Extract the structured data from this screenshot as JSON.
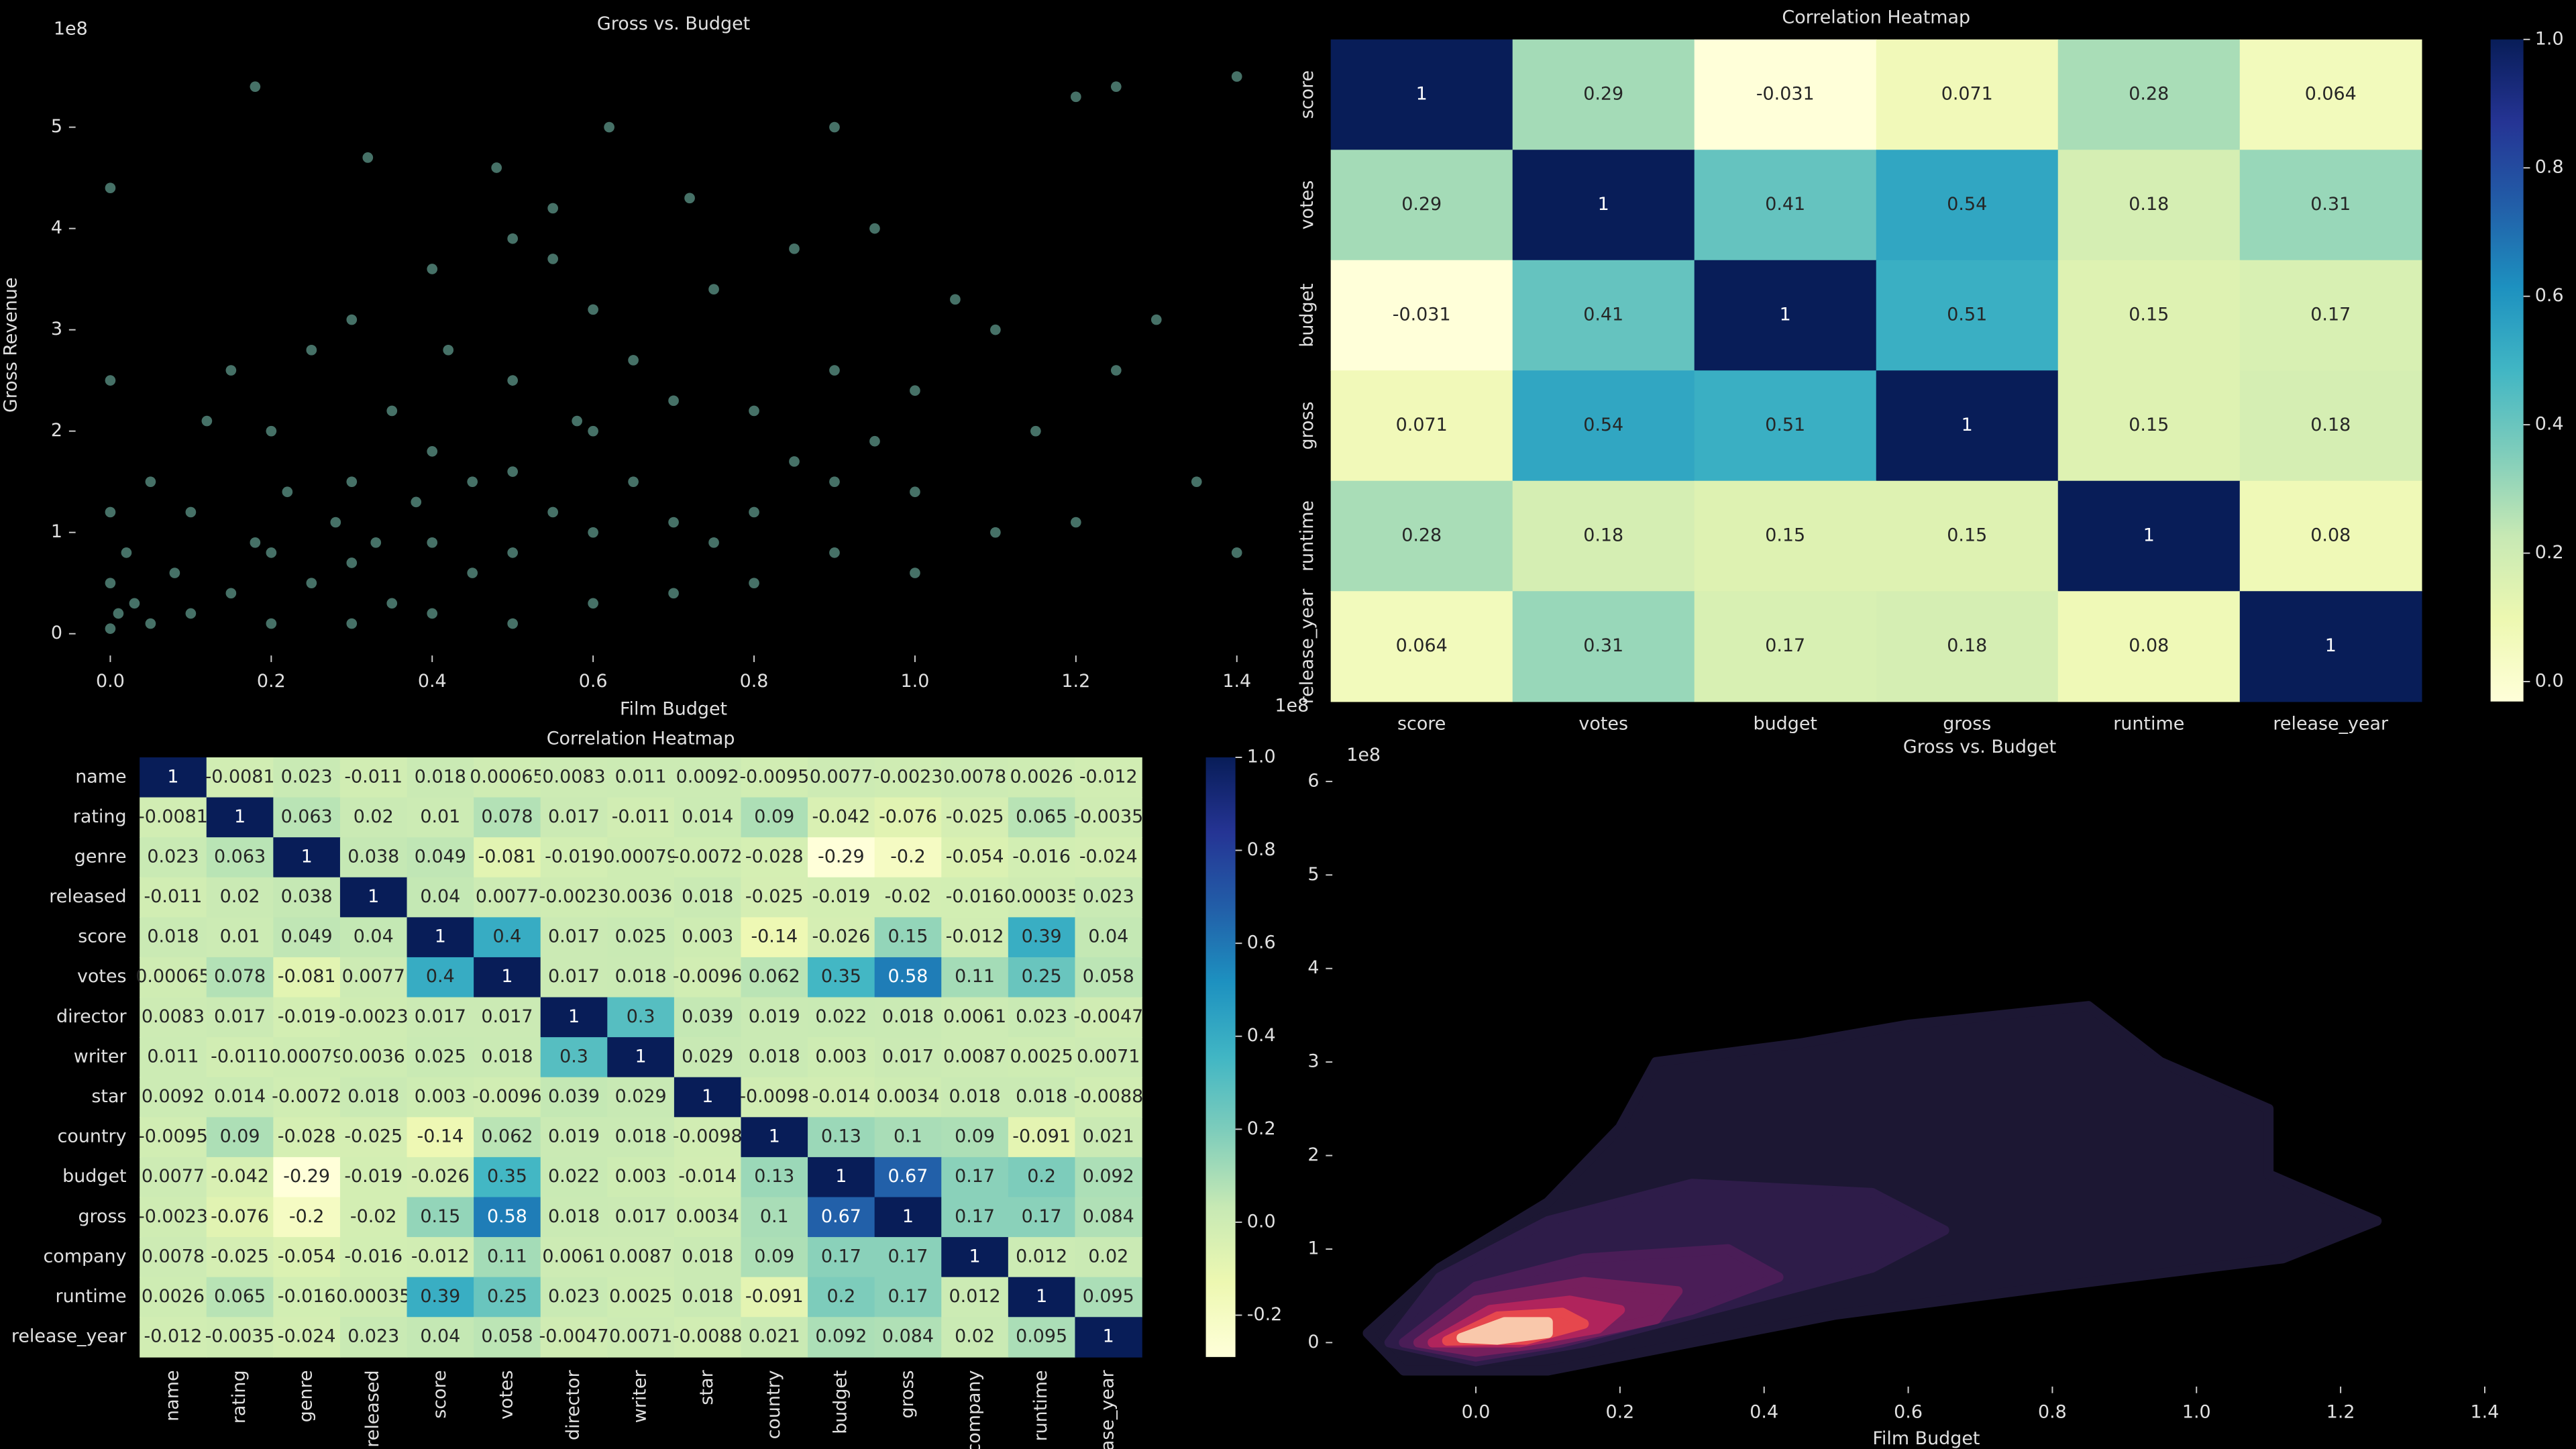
{
  "chart_data": [
    {
      "type": "scatter",
      "title": "Gross vs. Budget",
      "xlabel": "Film Budget",
      "ylabel": "Gross Revenue",
      "x_offset": "1e8",
      "y_offset": "1e8",
      "xlim": [
        -0.035,
        1.435
      ],
      "ylim": [
        -0.15,
        5.85
      ],
      "xticks": [
        {
          "value": 0,
          "label": "0.0"
        },
        0.2,
        0.4,
        0.6,
        0.8,
        {
          "value": 1,
          "label": "1.0"
        },
        1.2,
        1.4
      ],
      "yticks": [
        0,
        1,
        2,
        3,
        4,
        5
      ],
      "color": "#7fcdbb",
      "alpha": 0.55,
      "x": [
        0,
        0,
        0,
        0,
        0,
        0.01,
        0.02,
        0.03,
        0.05,
        0.05,
        0.08,
        0.1,
        0.1,
        0.12,
        0.15,
        0.15,
        0.18,
        0.2,
        0.2,
        0.2,
        0.22,
        0.25,
        0.25,
        0.28,
        0.3,
        0.3,
        0.3,
        0.3,
        0.33,
        0.35,
        0.35,
        0.38,
        0.4,
        0.4,
        0.4,
        0.4,
        0.42,
        0.45,
        0.45,
        0.48,
        0.5,
        0.5,
        0.5,
        0.5,
        0.5,
        0.55,
        0.55,
        0.58,
        0.6,
        0.6,
        0.6,
        0.6,
        0.62,
        0.65,
        0.65,
        0.7,
        0.7,
        0.7,
        0.72,
        0.75,
        0.75,
        0.8,
        0.8,
        0.8,
        0.85,
        0.85,
        0.9,
        0.9,
        0.9,
        0.95,
        0.95,
        1.0,
        1.0,
        1.0,
        1.05,
        1.1,
        1.1,
        1.15,
        1.2,
        1.2,
        1.25,
        1.25,
        1.3,
        1.35,
        1.4,
        1.4,
        0.18,
        0.32,
        0.9,
        0.55
      ],
      "y": [
        0.05,
        0.5,
        1.2,
        2.5,
        4.4,
        0.2,
        0.8,
        0.3,
        1.5,
        0.1,
        0.6,
        0.2,
        1.2,
        2.1,
        0.4,
        2.6,
        0.9,
        0.1,
        0.8,
        2.0,
        1.4,
        0.5,
        2.8,
        1.1,
        0.1,
        0.7,
        1.5,
        3.1,
        0.9,
        0.3,
        2.2,
        1.3,
        0.2,
        0.9,
        1.8,
        3.6,
        2.8,
        0.6,
        1.5,
        4.6,
        0.1,
        0.8,
        1.6,
        2.5,
        3.9,
        1.2,
        4.2,
        2.1,
        0.3,
        1.0,
        2.0,
        3.2,
        5.0,
        1.5,
        2.7,
        0.4,
        1.1,
        2.3,
        4.3,
        0.9,
        3.4,
        0.5,
        1.2,
        2.2,
        1.7,
        3.8,
        0.8,
        1.5,
        2.6,
        1.9,
        4.0,
        0.6,
        1.4,
        2.4,
        3.3,
        1.0,
        3.0,
        2.0,
        1.1,
        5.3,
        2.6,
        5.4,
        3.1,
        1.5,
        0.8,
        5.5,
        5.4,
        4.7,
        5.0,
        3.7
      ]
    },
    {
      "type": "heatmap",
      "title": "Correlation Heatmap",
      "labels": [
        "score",
        "votes",
        "budget",
        "gross",
        "runtime",
        "release_year"
      ],
      "values": [
        [
          1,
          0.29,
          -0.031,
          0.071,
          0.28,
          0.064
        ],
        [
          0.29,
          1,
          0.41,
          0.54,
          0.18,
          0.31
        ],
        [
          -0.031,
          0.41,
          1,
          0.51,
          0.15,
          0.17
        ],
        [
          0.071,
          0.54,
          0.51,
          1,
          0.15,
          0.18
        ],
        [
          0.28,
          0.18,
          0.15,
          0.15,
          1,
          0.08
        ],
        [
          0.064,
          0.31,
          0.17,
          0.18,
          0.08,
          1
        ]
      ],
      "clim": [
        -0.031,
        1
      ],
      "cticks": [
        {
          "value": 0,
          "label": "0.0"
        },
        0.2,
        0.4,
        0.6,
        0.8,
        {
          "value": 1,
          "label": "1.0"
        }
      ],
      "colormap": [
        "#ffffd9",
        "#edf8b1",
        "#c7e9b4",
        "#7fcdbb",
        "#41b6c4",
        "#1d91c0",
        "#225ea8",
        "#253494",
        "#081d58"
      ]
    },
    {
      "type": "heatmap",
      "title": "Correlation Heatmap",
      "labels": [
        "name",
        "rating",
        "genre",
        "released",
        "score",
        "votes",
        "director",
        "writer",
        "star",
        "country",
        "budget",
        "gross",
        "company",
        "runtime",
        "release_year"
      ],
      "values": [
        [
          1,
          -0.0081,
          0.023,
          -0.011,
          0.018,
          0.00065,
          0.0083,
          0.011,
          0.0092,
          -0.0095,
          0.0077,
          -0.0023,
          0.0078,
          0.0026,
          -0.012
        ],
        [
          -0.0081,
          1,
          0.063,
          0.02,
          0.01,
          0.078,
          0.017,
          -0.011,
          0.014,
          0.09,
          -0.042,
          -0.076,
          -0.025,
          0.065,
          -0.0035
        ],
        [
          0.023,
          0.063,
          1,
          0.038,
          0.049,
          -0.081,
          -0.019,
          0.00079,
          -0.0072,
          -0.028,
          -0.29,
          -0.2,
          -0.054,
          -0.016,
          -0.024
        ],
        [
          -0.011,
          0.02,
          0.038,
          1,
          0.04,
          0.0077,
          -0.0023,
          0.0036,
          0.018,
          -0.025,
          -0.019,
          -0.02,
          -0.016,
          0.00035,
          0.023
        ],
        [
          0.018,
          0.01,
          0.049,
          0.04,
          1,
          0.4,
          0.017,
          0.025,
          0.003,
          -0.14,
          -0.026,
          0.15,
          -0.012,
          0.39,
          0.04
        ],
        [
          0.00065,
          0.078,
          -0.081,
          0.0077,
          0.4,
          1,
          0.017,
          0.018,
          -0.0096,
          0.062,
          0.35,
          0.58,
          0.11,
          0.25,
          0.058
        ],
        [
          0.0083,
          0.017,
          -0.019,
          -0.0023,
          0.017,
          0.017,
          1,
          0.3,
          0.039,
          0.019,
          0.022,
          0.018,
          0.0061,
          0.023,
          -0.0047
        ],
        [
          0.011,
          -0.011,
          0.00079,
          0.0036,
          0.025,
          0.018,
          0.3,
          1,
          0.029,
          0.018,
          0.003,
          0.017,
          0.0087,
          0.0025,
          0.0071
        ],
        [
          0.0092,
          0.014,
          -0.0072,
          0.018,
          0.003,
          -0.0096,
          0.039,
          0.029,
          1,
          -0.0098,
          -0.014,
          0.0034,
          0.018,
          0.018,
          -0.0088
        ],
        [
          -0.0095,
          0.09,
          -0.028,
          -0.025,
          -0.14,
          0.062,
          0.019,
          0.018,
          -0.0098,
          1,
          0.13,
          0.1,
          0.09,
          -0.091,
          0.021
        ],
        [
          0.0077,
          -0.042,
          -0.29,
          -0.019,
          -0.026,
          0.35,
          0.022,
          0.003,
          -0.014,
          0.13,
          1,
          0.67,
          0.17,
          0.2,
          0.092
        ],
        [
          -0.0023,
          -0.076,
          -0.2,
          -0.02,
          0.15,
          0.58,
          0.018,
          0.017,
          0.0034,
          0.1,
          0.67,
          1,
          0.17,
          0.17,
          0.084
        ],
        [
          0.0078,
          -0.025,
          -0.054,
          -0.016,
          -0.012,
          0.11,
          0.0061,
          0.0087,
          0.018,
          0.09,
          0.17,
          0.17,
          1,
          0.012,
          0.02
        ],
        [
          0.0026,
          0.065,
          -0.016,
          0.00035,
          0.39,
          0.25,
          0.023,
          0.0025,
          0.018,
          -0.091,
          0.2,
          0.17,
          0.012,
          1,
          0.095
        ],
        [
          -0.012,
          -0.0035,
          -0.024,
          0.023,
          0.04,
          0.058,
          -0.0047,
          0.0071,
          -0.0088,
          0.021,
          0.092,
          0.084,
          0.02,
          0.095,
          1
        ]
      ],
      "clim": [
        -0.29,
        1
      ],
      "cticks": [
        -0.2,
        {
          "value": 0,
          "label": "0.0"
        },
        0.2,
        0.4,
        0.6,
        0.8,
        {
          "value": 1,
          "label": "1.0"
        }
      ],
      "colormap": [
        "#ffffd9",
        "#edf8b1",
        "#c7e9b4",
        "#7fcdbb",
        "#41b6c4",
        "#1d91c0",
        "#225ea8",
        "#253494",
        "#081d58"
      ]
    },
    {
      "type": "kde",
      "title": "Gross vs. Budget",
      "xlabel": "Film Budget",
      "y_offset": "1e8",
      "xlim": [
        -0.19,
        1.44
      ],
      "ylim": [
        -0.4,
        6.24
      ],
      "xticks": [
        {
          "value": 0,
          "label": "0.0"
        },
        0.2,
        0.4,
        0.6,
        0.8,
        {
          "value": 1,
          "label": "1.0"
        },
        1.2,
        1.4
      ],
      "yticks": [
        0,
        1,
        2,
        3,
        4,
        5,
        6
      ],
      "contours": [
        {
          "color": "#1c1733",
          "x": [
            -0.15,
            -0.05,
            0.1,
            0.2,
            0.25,
            0.45,
            0.6,
            0.85,
            0.95,
            1.1,
            1.1,
            1.25,
            1.12,
            0.8,
            0.5,
            0.3,
            0.1,
            -0.1
          ],
          "y": [
            0.1,
            0.8,
            1.5,
            2.3,
            3.0,
            3.2,
            3.4,
            3.6,
            3.0,
            2.5,
            1.8,
            1.3,
            0.9,
            0.6,
            0.3,
            0.0,
            -0.3,
            -0.3
          ]
        },
        {
          "color": "#2e1c49",
          "x": [
            -0.12,
            -0.05,
            0.1,
            0.3,
            0.55,
            0.65,
            0.55,
            0.35,
            0.15,
            0
          ],
          "y": [
            0.0,
            0.7,
            1.3,
            1.7,
            1.6,
            1.2,
            0.8,
            0.4,
            0.0,
            -0.2
          ]
        },
        {
          "color": "#4a1d57",
          "x": [
            -0.1,
            0.0,
            0.15,
            0.35,
            0.42,
            0.3,
            0.12,
            0
          ],
          "y": [
            0.0,
            0.6,
            0.9,
            1.0,
            0.7,
            0.35,
            0.0,
            -0.15
          ]
        },
        {
          "color": "#761f5d",
          "x": [
            -0.08,
            0.0,
            0.15,
            0.28,
            0.25,
            0.1,
            0
          ],
          "y": [
            0.0,
            0.45,
            0.65,
            0.55,
            0.25,
            0.0,
            -0.1
          ]
        },
        {
          "color": "#b0245c",
          "x": [
            -0.06,
            0.02,
            0.13,
            0.2,
            0.17,
            0.06
          ],
          "y": [
            0.0,
            0.35,
            0.45,
            0.35,
            0.15,
            0.0
          ]
        },
        {
          "color": "#e6474d",
          "x": [
            -0.04,
            0.03,
            0.12,
            0.15,
            0.07
          ],
          "y": [
            0.02,
            0.28,
            0.32,
            0.2,
            0.03
          ]
        },
        {
          "color": "#f9c8ab",
          "x": [
            -0.02,
            0.04,
            0.1,
            0.1,
            0.03
          ],
          "y": [
            0.05,
            0.22,
            0.22,
            0.1,
            0.03
          ]
        }
      ]
    }
  ]
}
